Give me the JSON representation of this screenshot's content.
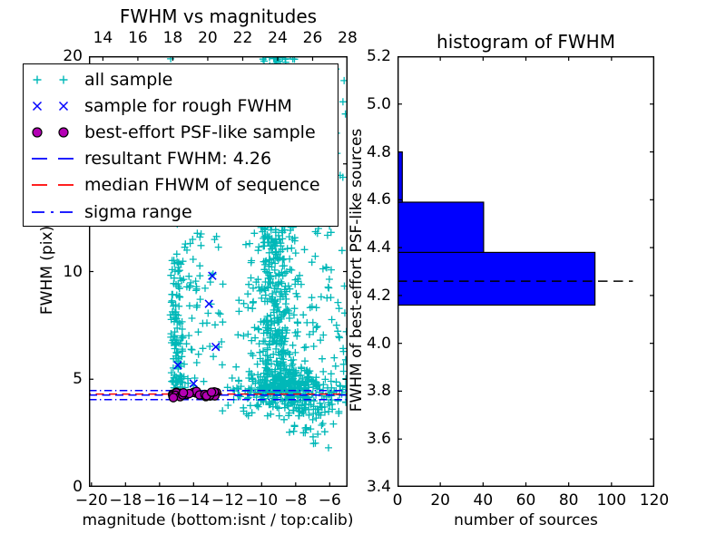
{
  "figure": {
    "background": "#ffffff"
  },
  "colors": {
    "all_sample": "#00b8b8",
    "rough_sample": "#0000ff",
    "psf_fill": "#b400b4",
    "psf_edge": "#000000",
    "resultant_line": "#0000ff",
    "median_line": "#ff0000",
    "sigma_line": "#0000ff",
    "hist_bar": "#0000ff",
    "hist_edge": "#000000",
    "hist_median": "#000000",
    "axis": "#000000"
  },
  "chart_data": {
    "left": {
      "type": "scatter",
      "title": "FWHM vs magnitudes",
      "xlabel": "magnitude (bottom:isnt / top:calib)",
      "ylabel": "FWHM (pix)",
      "xlim": [
        -20.15,
        -4.95
      ],
      "ylim": [
        0,
        20
      ],
      "top_xlim": [
        13.2,
        28.0
      ],
      "xticks": {
        "values": [
          -20,
          -18,
          -16,
          -14,
          -12,
          -10,
          -8,
          -6
        ],
        "labels": [
          "−20",
          "−18",
          "−16",
          "−14",
          "−12",
          "−10",
          "−8",
          "−6"
        ]
      },
      "top_xticks": {
        "values": [
          14,
          16,
          18,
          20,
          22,
          24,
          26,
          28
        ],
        "labels": [
          "14",
          "16",
          "18",
          "20",
          "22",
          "24",
          "26",
          "28"
        ]
      },
      "yticks": {
        "values": [
          0,
          5,
          10,
          15,
          20
        ],
        "labels": [
          "0",
          "5",
          "10",
          "15",
          "20"
        ]
      },
      "series": {
        "all_sample": {
          "name": "all sample",
          "marker": "plus",
          "color": "#00b8b8",
          "seed": 11,
          "clusters": [
            {
              "x": {
                "dist": "gauss",
                "mean": -14.95,
                "sd": 0.2,
                "min": -15.45,
                "max": -14.45
              },
              "y": {
                "dist": "uniform",
                "a": 4.3,
                "b": 10.4
              },
              "count": 120
            },
            {
              "x": {
                "dist": "uniform",
                "a": -15.3,
                "b": -14.4
              },
              "y": {
                "dist": "uniform",
                "a": 10.4,
                "b": 14.0
              },
              "count": 12
            },
            {
              "x": {
                "dist": "uniform",
                "a": -14.55,
                "b": -12.2
              },
              "y": {
                "dist": "uniform",
                "a": 4.6,
                "b": 12.0
              },
              "count": 60
            },
            {
              "x": {
                "dist": "gauss",
                "mean": -9.15,
                "sd": 0.55,
                "min": -10.8,
                "max": -7.4
              },
              "y": {
                "dist": "uniform",
                "a": 4.5,
                "b": 20.2
              },
              "count": 620
            },
            {
              "x": {
                "dist": "gauss",
                "mean": -8.6,
                "sd": 1.45,
                "min": -12.3,
                "max": -5.05
              },
              "y": {
                "dist": "gauss",
                "mean": 4.55,
                "sd": 0.5,
                "min": 3.3,
                "max": 6.2
              },
              "count": 430
            },
            {
              "x": {
                "dist": "uniform",
                "a": -11.4,
                "b": -6.0
              },
              "y": {
                "dist": "uniform",
                "a": 6.0,
                "b": 12.0
              },
              "count": 90
            },
            {
              "x": {
                "dist": "uniform",
                "a": -8.7,
                "b": -5.4
              },
              "y": {
                "dist": "uniform",
                "a": 2.5,
                "b": 3.9
              },
              "count": 40
            },
            {
              "x": {
                "dist": "uniform",
                "a": -7.0,
                "b": -5.5
              },
              "y": {
                "dist": "uniform",
                "a": 1.8,
                "b": 2.6
              },
              "count": 5
            },
            {
              "x": {
                "dist": "uniform",
                "a": -6.1,
                "b": -5.0
              },
              "y": {
                "dist": "uniform",
                "a": 4.3,
                "b": 19.5
              },
              "count": 38
            },
            {
              "x": {
                "dist": "uniform",
                "a": -15.36,
                "b": -15.32
              },
              "y": {
                "dist": "uniform",
                "a": 19.85,
                "b": 19.95
              },
              "count": 1
            }
          ]
        },
        "rough_sample": {
          "name": "sample for rough FWHM",
          "marker": "x",
          "color": "#0000ff",
          "points": [
            [
              -12.9,
              9.8
            ],
            [
              -13.1,
              8.5
            ],
            [
              -12.7,
              6.5
            ],
            [
              -14.93,
              5.65
            ],
            [
              -14.0,
              4.8
            ]
          ]
        },
        "psf_sample": {
          "name": "best-effort PSF-like sample",
          "marker": "circle",
          "color": "#b400b4",
          "edge": "#000000",
          "seed": 23,
          "clusters": [
            {
              "x": {
                "dist": "uniform",
                "a": -15.25,
                "b": -12.5
              },
              "y": {
                "dist": "gauss",
                "mean": 4.27,
                "sd": 0.08,
                "min": 4.05,
                "max": 4.48
              },
              "count": 30
            }
          ]
        }
      },
      "lines": [
        {
          "name": "sigma range upper",
          "y": 4.47,
          "color": "#0000ff",
          "style": "dashdot"
        },
        {
          "name": "median FHWM of sequence",
          "y": 4.31,
          "color": "#ff0000",
          "style": "dashed"
        },
        {
          "name": "resultant FWHM: 4.26",
          "y": 4.26,
          "color": "#0000ff",
          "style": "dashed"
        },
        {
          "name": "sigma range lower",
          "y": 4.05,
          "color": "#0000ff",
          "style": "dashdot"
        }
      ],
      "legend": [
        {
          "marker": "plus",
          "color": "#00b8b8",
          "label": "all sample"
        },
        {
          "marker": "x",
          "color": "#0000ff",
          "label": "sample for rough FWHM"
        },
        {
          "marker": "circle",
          "color": "#b400b4",
          "edge": "#000000",
          "label": "best-effort PSF-like sample"
        },
        {
          "marker": "dashed",
          "color": "#0000ff",
          "label": "resultant FWHM: 4.26"
        },
        {
          "marker": "dashed",
          "color": "#ff0000",
          "label": "median FHWM of sequence"
        },
        {
          "marker": "dashdot",
          "color": "#0000ff",
          "label": "sigma range"
        }
      ],
      "resultant_fwhm": 4.26
    },
    "right": {
      "type": "barh-histogram",
      "title": "histogram of FWHM",
      "xlabel": "number of sources",
      "ylabel": "FWHM of best-effort PSF-like sources",
      "xlim": [
        0,
        120
      ],
      "ylim": [
        3.4,
        5.2
      ],
      "xticks": {
        "values": [
          0,
          20,
          40,
          60,
          80,
          100,
          120
        ],
        "labels": [
          "0",
          "20",
          "40",
          "60",
          "80",
          "100",
          "120"
        ]
      },
      "yticks": {
        "values": [
          3.4,
          3.6,
          3.8,
          4.0,
          4.2,
          4.4,
          4.6,
          4.8,
          5.0,
          5.2
        ],
        "labels": [
          "3.4",
          "3.6",
          "3.8",
          "4.0",
          "4.2",
          "4.4",
          "4.6",
          "4.8",
          "5.0",
          "5.2"
        ]
      },
      "bins": {
        "edges": [
          4.16,
          4.38,
          4.59,
          4.8
        ],
        "counts": [
          92,
          40,
          2
        ]
      },
      "bar_color": "#0000ff",
      "bar_edge": "#000000",
      "median_line": {
        "y": 4.26,
        "x_start": 0,
        "x_end": 110,
        "color": "#000000",
        "style": "dashed"
      }
    }
  }
}
